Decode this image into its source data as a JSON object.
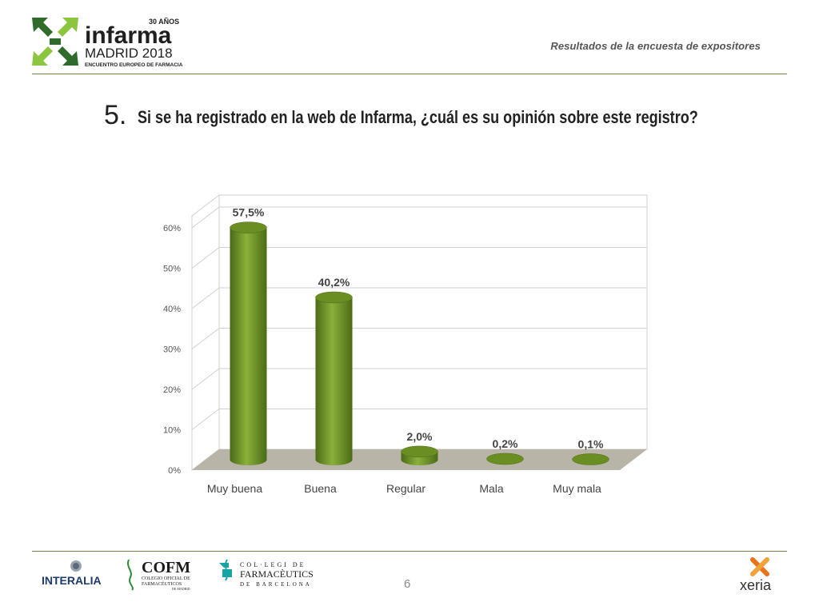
{
  "header": {
    "logo": {
      "years": "30 AÑOS",
      "brand": "infarma",
      "city_year": "MADRID 2018",
      "tagline": "ENCUENTRO EUROPEO DE FARMACIA",
      "colors": {
        "dark_green": "#2f6b2a",
        "light_green": "#8cc63f",
        "text": "#1f1f1f"
      }
    },
    "subtitle": "Resultados de la encuesta de expositores"
  },
  "question": {
    "number": "5.",
    "text": "Si se ha registrado en la web de Infarma, ¿cuál es su opinión sobre este registro?"
  },
  "chart_data": {
    "type": "bar",
    "categories": [
      "Muy buena",
      "Buena",
      "Regular",
      "Mala",
      "Muy mala"
    ],
    "values": [
      57.5,
      40.2,
      2.0,
      0.2,
      0.1
    ],
    "data_labels": [
      "57,5%",
      "40,2%",
      "2,0%",
      "0,2%",
      "0,1%"
    ],
    "y_ticks": [
      "0%",
      "10%",
      "20%",
      "30%",
      "40%",
      "50%",
      "60%"
    ],
    "ylim": [
      0,
      60
    ],
    "title": "",
    "xlabel": "",
    "ylabel": "",
    "grid": true,
    "style": "3d-cylinder",
    "colors": {
      "bar": "#6b8e23",
      "bar_dark": "#4a6b16",
      "bar_light": "#8bb03a",
      "floor": "#b8b4a8",
      "grid": "#d0d0d0"
    }
  },
  "footer": {
    "page_number": "6",
    "logos": {
      "interalia": "INTERALIA",
      "cofm_abbr": "COFM",
      "cofm_line1": "COLEGIO OFICIAL DE",
      "cofm_line2": "FARMACÉUTICOS",
      "cofm_line3": "DE MADRID",
      "cofb_line1": "COL·LEGI DE",
      "cofb_line2": "FARMACÈUTICS",
      "cofb_line3": "DE BARCELONA",
      "xeria": "xeria"
    }
  }
}
